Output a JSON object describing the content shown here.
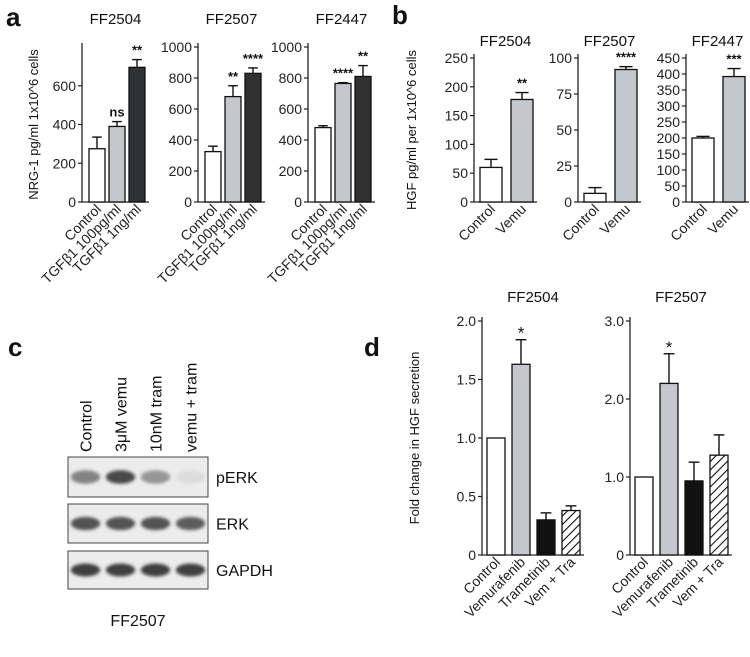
{
  "panel_labels": {
    "a": "a",
    "b": "b",
    "c": "c",
    "d": "d"
  },
  "colors": {
    "control": "#ffffff",
    "light": "#c4c7cb",
    "dark": "#2f3133",
    "outline": "#111111",
    "black": "#111111"
  },
  "chart_data": [
    {
      "id": "a1",
      "type": "bar",
      "title": "FF2504",
      "ylabel": "NRG-1 pg/ml 1x10^6 cells",
      "ylim": [
        0,
        800
      ],
      "yticks": [
        0,
        200,
        400,
        600
      ],
      "categories": [
        "Control",
        "TGFβ1 100pg/ml",
        "TGFβ1 1ng/ml"
      ],
      "values": [
        275,
        390,
        695
      ],
      "errors": [
        60,
        25,
        40
      ],
      "significance": [
        "",
        "ns",
        "**"
      ],
      "fills": [
        "control",
        "light",
        "dark"
      ]
    },
    {
      "id": "a2",
      "type": "bar",
      "title": "FF2507",
      "ylabel": "",
      "ylim": [
        0,
        1000
      ],
      "yticks": [
        0,
        200,
        400,
        600,
        800,
        1000
      ],
      "categories": [
        "Control",
        "TGFβ1 100pg/ml",
        "TGFβ1 1ng/ml"
      ],
      "values": [
        325,
        680,
        830
      ],
      "errors": [
        35,
        70,
        35
      ],
      "significance": [
        "",
        "**",
        "****"
      ],
      "fills": [
        "control",
        "light",
        "dark"
      ]
    },
    {
      "id": "a3",
      "type": "bar",
      "title": "FF2447",
      "ylabel": "",
      "ylim": [
        0,
        1000
      ],
      "yticks": [
        0,
        200,
        400,
        600,
        800,
        1000
      ],
      "categories": [
        "Control",
        "TGFβ1 100pg/ml",
        "TGFβ1 1ng/ml"
      ],
      "values": [
        480,
        765,
        810
      ],
      "errors": [
        12,
        5,
        70
      ],
      "significance": [
        "",
        "****",
        "**"
      ],
      "fills": [
        "control",
        "light",
        "dark"
      ]
    },
    {
      "id": "b1",
      "type": "bar",
      "title": "FF2504",
      "ylabel": "HGF pg/ml per 1x10^6 cells",
      "ylim": [
        0,
        250
      ],
      "yticks": [
        0,
        50,
        100,
        150,
        200,
        250
      ],
      "categories": [
        "Control",
        "Vemu"
      ],
      "values": [
        60,
        178
      ],
      "errors": [
        14,
        12
      ],
      "significance": [
        "",
        "**"
      ],
      "fills": [
        "control",
        "light"
      ]
    },
    {
      "id": "b2",
      "type": "bar",
      "title": "FF2507",
      "ylabel": "",
      "ylim": [
        0,
        100
      ],
      "yticks": [
        0,
        25,
        50,
        75,
        100
      ],
      "categories": [
        "Control",
        "Vemu"
      ],
      "values": [
        6,
        92
      ],
      "errors": [
        4,
        2
      ],
      "significance": [
        "",
        "****"
      ],
      "fills": [
        "control",
        "light"
      ]
    },
    {
      "id": "b3",
      "type": "bar",
      "title": "FF2447",
      "ylabel": "",
      "ylim": [
        0,
        450
      ],
      "yticks": [
        0,
        50,
        100,
        150,
        200,
        250,
        300,
        350,
        400,
        450
      ],
      "categories": [
        "Control",
        "Vemu"
      ],
      "values": [
        200,
        392
      ],
      "errors": [
        5,
        25
      ],
      "significance": [
        "",
        "***"
      ],
      "fills": [
        "control",
        "light"
      ]
    },
    {
      "id": "d1",
      "type": "bar",
      "title": "FF2504",
      "ylabel": "Fold change in HGF secretion",
      "ylim": [
        0,
        2.0
      ],
      "yticks": [
        0,
        0.5,
        1.0,
        1.5,
        2.0
      ],
      "ytick_labels": [
        "0",
        "0.5",
        "1.0",
        "1.5",
        "2.0"
      ],
      "categories": [
        "Control",
        "Vemurafenib",
        "Trametinib",
        "Vem + Tra"
      ],
      "values": [
        1.0,
        1.63,
        0.3,
        0.38
      ],
      "errors": [
        0,
        0.21,
        0.06,
        0.04
      ],
      "significance": [
        "",
        "*",
        "",
        ""
      ],
      "fills": [
        "control",
        "light",
        "black",
        "hatch"
      ]
    },
    {
      "id": "d2",
      "type": "bar",
      "title": "FF2507",
      "ylabel": "",
      "ylim": [
        0,
        3.0
      ],
      "yticks": [
        0,
        1.0,
        2.0,
        3.0
      ],
      "ytick_labels": [
        "0",
        "1.0",
        "2.0",
        "3.0"
      ],
      "categories": [
        "Control",
        "Vemurafenib",
        "Trametinib",
        "Vem + Tra"
      ],
      "values": [
        1.0,
        2.2,
        0.95,
        1.28
      ],
      "errors": [
        0,
        0.38,
        0.24,
        0.26
      ],
      "significance": [
        "",
        "*",
        "",
        ""
      ],
      "fills": [
        "control",
        "light",
        "black",
        "hatch"
      ]
    }
  ],
  "blot": {
    "lanes": [
      "Control",
      "3μM vemu",
      "10nM tram",
      "vemu + tram"
    ],
    "bands": [
      {
        "label": "pERK",
        "intensity": [
          0.55,
          0.85,
          0.45,
          0.08
        ]
      },
      {
        "label": "ERK",
        "intensity": [
          0.8,
          0.8,
          0.8,
          0.75
        ]
      },
      {
        "label": "GAPDH",
        "intensity": [
          0.9,
          0.9,
          0.9,
          0.9
        ]
      }
    ],
    "caption": "FF2507"
  }
}
